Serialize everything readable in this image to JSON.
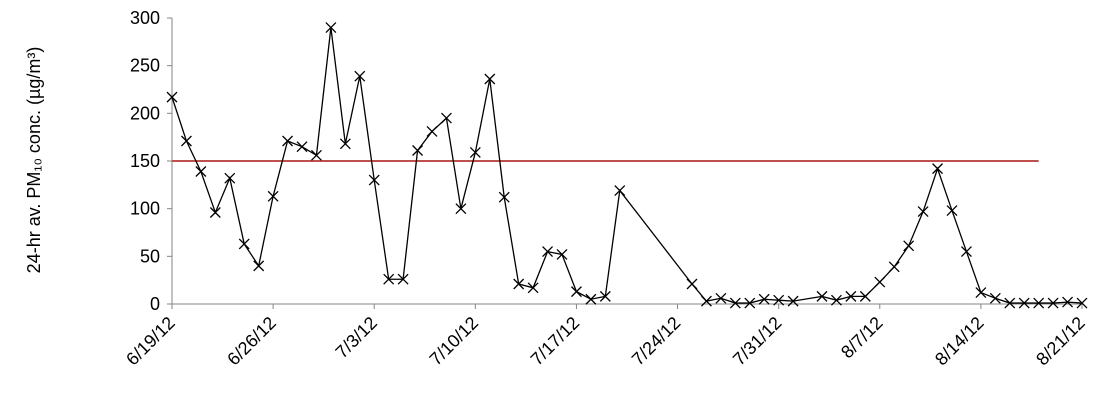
{
  "chart_data": {
    "type": "line",
    "y_label": "24-hr av. PM₁₀ conc. (µg/m³)",
    "x": [
      "2012-06-19",
      "2012-06-20",
      "2012-06-21",
      "2012-06-22",
      "2012-06-23",
      "2012-06-24",
      "2012-06-25",
      "2012-06-26",
      "2012-06-27",
      "2012-06-28",
      "2012-06-29",
      "2012-06-30",
      "2012-07-01",
      "2012-07-02",
      "2012-07-03",
      "2012-07-04",
      "2012-07-05",
      "2012-07-06",
      "2012-07-07",
      "2012-07-08",
      "2012-07-09",
      "2012-07-10",
      "2012-07-11",
      "2012-07-12",
      "2012-07-13",
      "2012-07-14",
      "2012-07-15",
      "2012-07-16",
      "2012-07-17",
      "2012-07-18",
      "2012-07-19",
      "2012-07-20",
      "2012-07-25",
      "2012-07-26",
      "2012-07-27",
      "2012-07-28",
      "2012-07-29",
      "2012-07-30",
      "2012-07-31",
      "2012-08-01",
      "2012-08-03",
      "2012-08-04",
      "2012-08-05",
      "2012-08-06",
      "2012-08-07",
      "2012-08-08",
      "2012-08-09",
      "2012-08-10",
      "2012-08-11",
      "2012-08-12",
      "2012-08-13",
      "2012-08-14",
      "2012-08-15",
      "2012-08-16",
      "2012-08-17",
      "2012-08-18",
      "2012-08-19",
      "2012-08-20",
      "2012-08-21"
    ],
    "series": [
      {
        "color": "#000000",
        "values": [
          217,
          171,
          139,
          96,
          132,
          63,
          40,
          113,
          171,
          165,
          156,
          290,
          168,
          239,
          130,
          26,
          26,
          161,
          181,
          195,
          100,
          159,
          236,
          112,
          21,
          17,
          55,
          52,
          13,
          5,
          8,
          119,
          21,
          3,
          6,
          1,
          1,
          5,
          4,
          3,
          8,
          4,
          8,
          8,
          23,
          39,
          61,
          97,
          142,
          98,
          55,
          12,
          6,
          1,
          1,
          1,
          1,
          2,
          1
        ]
      }
    ],
    "reference_line": {
      "value": 150,
      "color": "#c0504d",
      "x": [
        "2012-06-19",
        "2012-08-18"
      ]
    },
    "xlim": [
      "2012-06-19",
      "2012-08-21"
    ],
    "xticks": [
      {
        "value": "2012-06-19",
        "label": "6/19/12"
      },
      {
        "value": "2012-06-26",
        "label": "6/26/12"
      },
      {
        "value": "2012-07-03",
        "label": "7/3/12"
      },
      {
        "value": "2012-07-10",
        "label": "7/10/12"
      },
      {
        "value": "2012-07-17",
        "label": "7/17/12"
      },
      {
        "value": "2012-07-24",
        "label": "7/24/12"
      },
      {
        "value": "2012-07-31",
        "label": "7/31/12"
      },
      {
        "value": "2012-08-07",
        "label": "8/7/12"
      },
      {
        "value": "2012-08-14",
        "label": "8/14/12"
      },
      {
        "value": "2012-08-21",
        "label": "8/21/12"
      }
    ],
    "ylim": [
      0,
      300
    ],
    "yticks": [
      0,
      50,
      100,
      150,
      200,
      250,
      300
    ],
    "grid": false
  }
}
